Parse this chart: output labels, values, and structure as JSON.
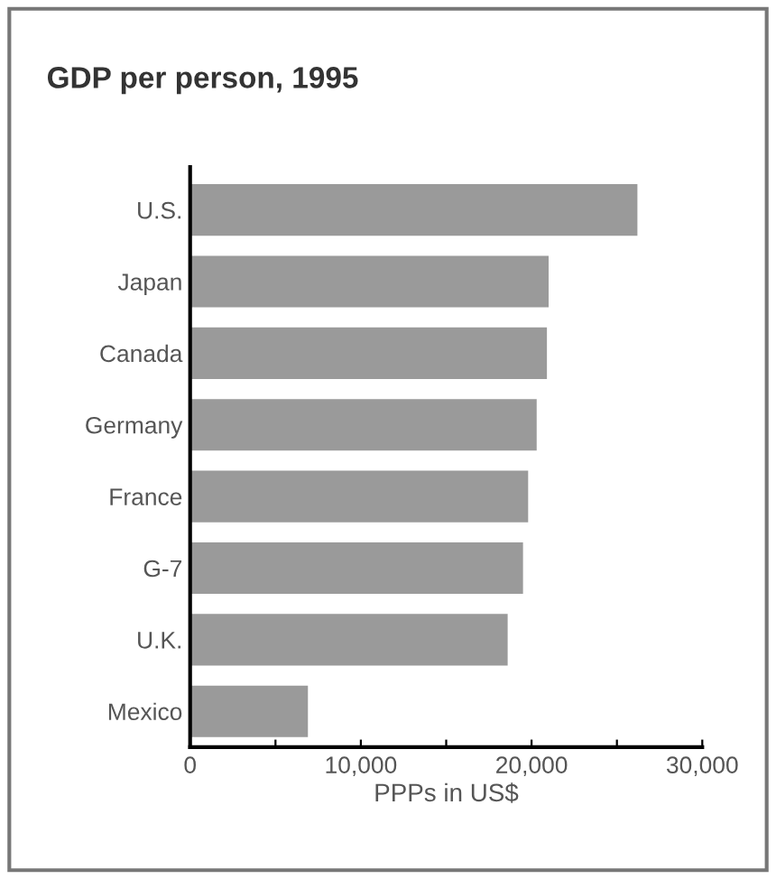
{
  "chart_data": {
    "type": "bar",
    "orientation": "horizontal",
    "title": "GDP per person, 1995",
    "xlabel": "PPPs in US$",
    "categories": [
      "U.S.",
      "Japan",
      "Canada",
      "Germany",
      "France",
      "G-7",
      "U.K.",
      "Mexico"
    ],
    "values": [
      26200,
      21000,
      20900,
      20300,
      19800,
      19500,
      18600,
      6900
    ],
    "color": "#9a9a9a",
    "xlim": [
      0,
      30000
    ],
    "xticks": [
      0,
      {
        "value": 5000,
        "label": null
      },
      {
        "value": 10000,
        "label": "10,000"
      },
      {
        "value": 15000,
        "label": null
      },
      {
        "value": 20000,
        "label": "20,000"
      },
      {
        "value": 25000,
        "label": null
      },
      {
        "value": 30000,
        "label": "30,000"
      }
    ],
    "grid": false
  }
}
